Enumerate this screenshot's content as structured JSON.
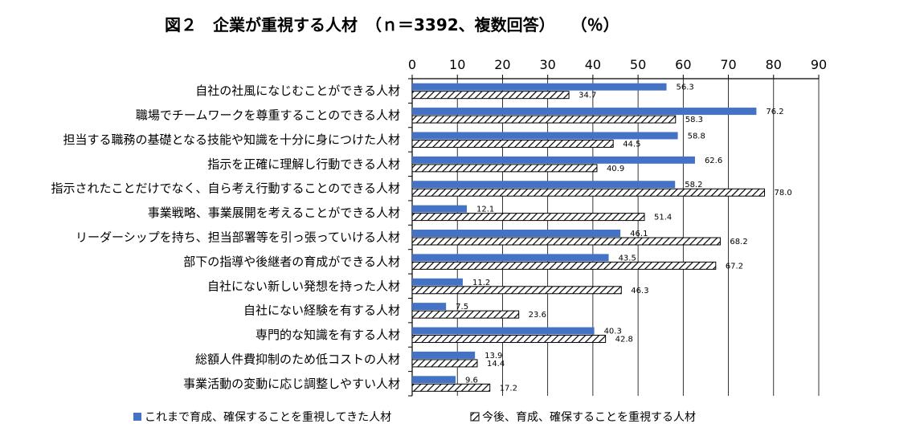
{
  "chart_data": {
    "type": "bar",
    "orientation": "horizontal",
    "title": "図２　企業が重視する人材　（ｎ＝3392、複数回答）　　（％）",
    "xlim": [
      0,
      90
    ],
    "xticks": [
      0,
      10,
      20,
      30,
      40,
      50,
      60,
      70,
      80,
      90
    ],
    "xtick_labels": [
      "0",
      "10",
      "20",
      "30",
      "40",
      "50",
      "60",
      "70",
      "80",
      "90"
    ],
    "grid": true,
    "legend_position": "bottom",
    "categories": [
      "自社の社風になじむことができる人材",
      "職場でチームワークを尊重することのできる人材",
      "担当する職務の基礎となる技能や知識を十分に身につけた人材",
      "指示を正確に理解し行動できる人材",
      "指示されたことだけでなく、自ら考え行動することのできる人材",
      "事業戦略、事業展開を考えることができる人材",
      "リーダーシップを持ち、担当部署等を引っ張っていける人材",
      "部下の指導や後継者の育成ができる人材",
      "自社にない新しい発想を持った人材",
      "自社にない経験を有する人材",
      "専門的な知識を有する人材",
      "総額人件費抑制のため低コストの人材",
      "事業活動の変動に応じ調整しやすい人材"
    ],
    "series": [
      {
        "name": "これまで育成、確保することを重視してきた人材",
        "color": "#4472C4",
        "pattern": "solid",
        "values": [
          56.3,
          76.2,
          58.8,
          62.6,
          58.2,
          12.1,
          46.1,
          43.5,
          11.2,
          7.5,
          40.3,
          13.9,
          9.6
        ],
        "labels": [
          "56.3",
          "76.2",
          "58.8",
          "62.6",
          "58.2",
          "12.1",
          "46.1",
          "43.5",
          "11.2",
          "7.5",
          "40.3",
          "13.9",
          "9.6"
        ]
      },
      {
        "name": "今後、育成、確保することを重視する人材",
        "color": "#000000",
        "pattern": "diagonal-hatch",
        "values": [
          34.7,
          58.3,
          44.5,
          40.9,
          78.0,
          51.4,
          68.2,
          67.2,
          46.3,
          23.6,
          42.8,
          14.4,
          17.2
        ],
        "labels": [
          "34.7",
          "58.3",
          "44.5",
          "40.9",
          "78.0",
          "51.4",
          "68.2",
          "67.2",
          "46.3",
          "23.6",
          "42.8",
          "14.4",
          "17.2"
        ]
      }
    ]
  }
}
